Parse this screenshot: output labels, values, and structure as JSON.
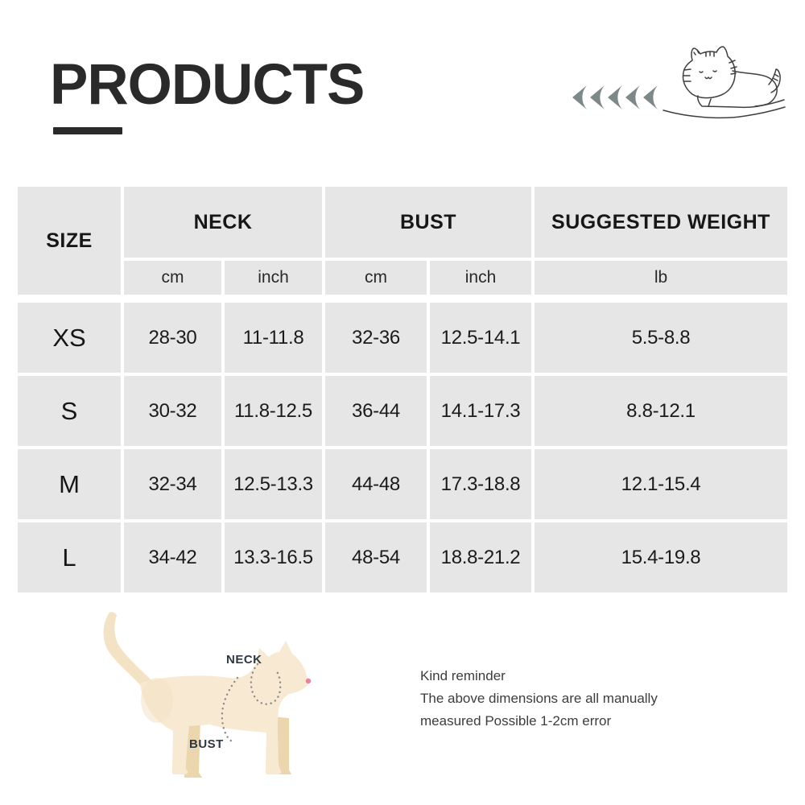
{
  "header": {
    "title": "PRODUCTS"
  },
  "icons": {
    "arrows": "five-left-pointing-arrows",
    "cat_doodle": "lying-cat-sketch",
    "cat_diagram": "cat-side-silhouette"
  },
  "table": {
    "headers": {
      "size": "SIZE",
      "neck": "NECK",
      "bust": "BUST",
      "weight": "SUGGESTED WEIGHT"
    },
    "units": [
      "cm",
      "inch",
      "cm",
      "inch",
      "lb"
    ],
    "rows": [
      {
        "size": "XS",
        "values": [
          "28-30",
          "11-11.8",
          "32-36",
          "12.5-14.1",
          "5.5-8.8"
        ]
      },
      {
        "size": "S",
        "values": [
          "30-32",
          "11.8-12.5",
          "36-44",
          "14.1-17.3",
          "8.8-12.1"
        ]
      },
      {
        "size": "M",
        "values": [
          "32-34",
          "12.5-13.3",
          "44-48",
          "17.3-18.8",
          "12.1-15.4"
        ]
      },
      {
        "size": "L",
        "values": [
          "34-42",
          "13.3-16.5",
          "48-54",
          "18.8-21.2",
          "15.4-19.8"
        ]
      }
    ]
  },
  "diagram": {
    "neck_label": "NECK",
    "bust_label": "BUST"
  },
  "reminder": {
    "title": "Kind reminder",
    "line1": "The above dimensions are all manually",
    "line2": "measured Possible 1-2cm error"
  },
  "colors": {
    "ink": "#2a2a2a",
    "cell": "#e6e6e6",
    "arrow": "#7d8989",
    "body": "#f7e9d2",
    "shade": "#ecd6ae",
    "shade2": "#f3e2c4",
    "nose": "#ee7f9d",
    "label": "#2d3844",
    "stroke": "#3f3f3f",
    "note": "#3d3d3d"
  }
}
